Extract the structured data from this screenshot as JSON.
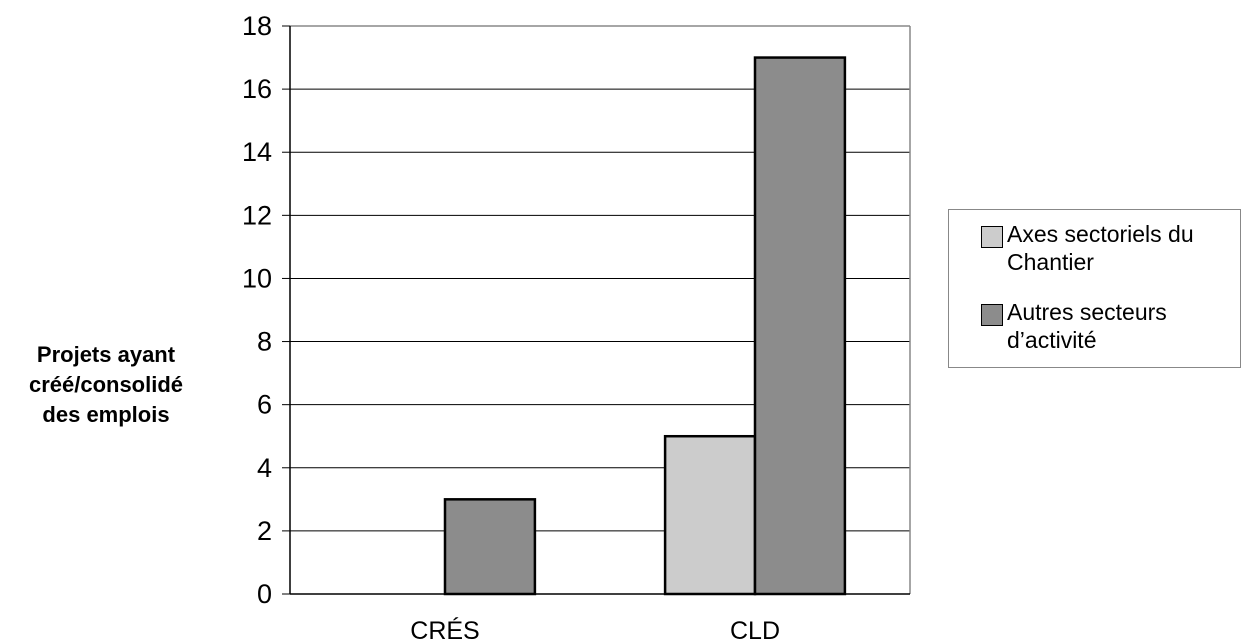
{
  "chart_data": {
    "type": "bar",
    "categories": [
      "CRÉS",
      "CLD"
    ],
    "series": [
      {
        "name": "Axes sectoriels du Chantier",
        "values": [
          0,
          5
        ],
        "color": "#cccccc"
      },
      {
        "name": "Autres secteurs d’activité",
        "values": [
          3,
          17
        ],
        "color": "#8c8c8c"
      }
    ],
    "ylabel_lines": [
      "Projets ayant",
      "créé/consolidé",
      "des emplois"
    ],
    "legend_lines": [
      [
        "Axes sectoriels du",
        "Chantier"
      ],
      [
        "Autres secteurs",
        "d’activité"
      ]
    ],
    "ylim": [
      0,
      18
    ],
    "yticks": [
      "0",
      "2",
      "4",
      "6",
      "8",
      "10",
      "12",
      "14",
      "16",
      "18"
    ],
    "grid": true,
    "legend_position": "right"
  }
}
